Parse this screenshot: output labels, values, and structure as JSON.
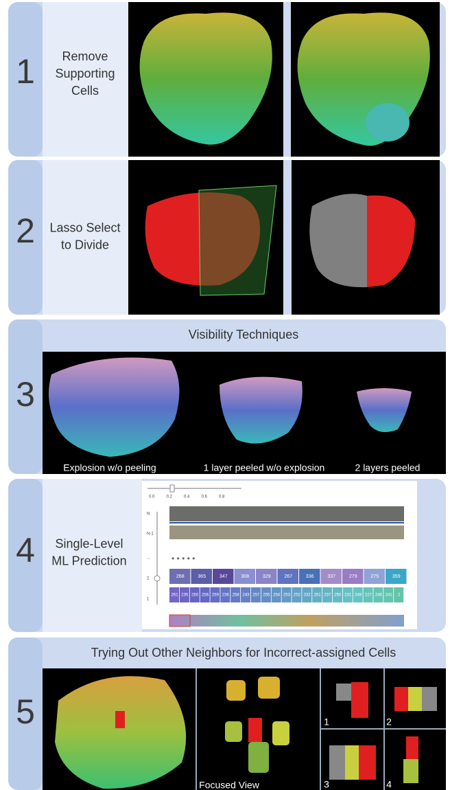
{
  "panels": [
    {
      "number": "1",
      "label": [
        "Remove",
        "Supporting",
        "Cells"
      ]
    },
    {
      "number": "2",
      "label": [
        "Lasso Select",
        "to Divide"
      ]
    },
    {
      "number": "3",
      "title": "Visibility Techniques",
      "captions": [
        "Explosion w/o peeling",
        "1 layer peeled w/o explosion",
        "2 layers peeled"
      ]
    },
    {
      "number": "4",
      "label": [
        "Single-Level",
        "ML Prediction"
      ],
      "screenshot": {
        "slider_ticks": [
          "0.0",
          "0.2",
          "0.4",
          "0.6",
          "0.8"
        ],
        "levels": [
          "N",
          "N-1",
          "...",
          "2",
          "1"
        ],
        "dots": "• • • • •",
        "row_upper": [
          "268",
          "365",
          "347",
          "308",
          "329",
          "267",
          "336",
          "337",
          "279",
          "275",
          "359"
        ],
        "row_lower": [
          "261",
          "235",
          "260",
          "256",
          "259",
          "236",
          "258",
          "243",
          "257",
          "255",
          "254",
          "253",
          "252",
          "232",
          "251",
          "237",
          "250",
          "231",
          "248",
          "227",
          "246",
          "241",
          "2"
        ]
      }
    },
    {
      "number": "5",
      "title": "Trying Out Other Neighbors for Incorrect-assigned Cells",
      "captions": [
        "Focused View",
        "1",
        "2",
        "3",
        "4"
      ]
    }
  ]
}
